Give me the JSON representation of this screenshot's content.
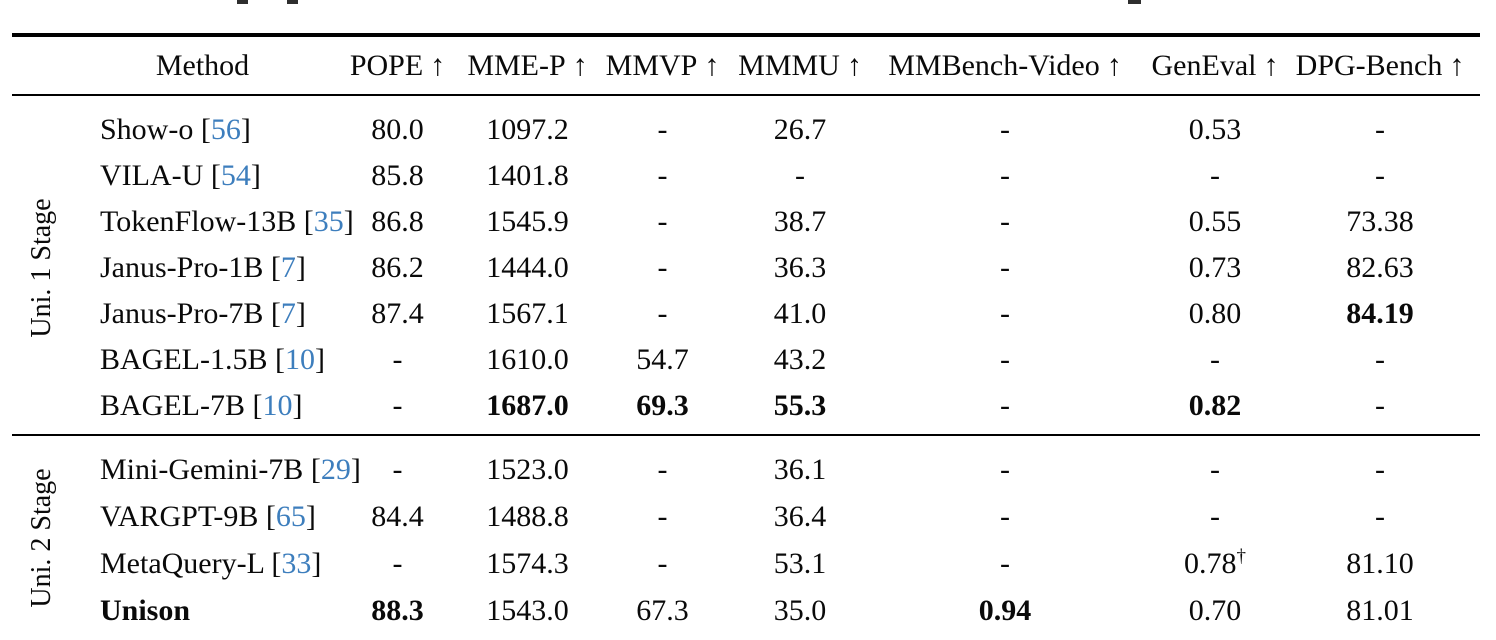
{
  "colors": {
    "text": "#0a0a0a",
    "citation": "#3d7ebd",
    "rule": "#000000"
  },
  "header": {
    "method_label": "Method",
    "arrow": "↑",
    "metrics": [
      "POPE",
      "MME-P",
      "MMVP",
      "MMMU",
      "MMBench-Video",
      "GenEval",
      "DPG-Bench"
    ]
  },
  "sections": [
    {
      "label": "Uni. 1 Stage",
      "rows": [
        {
          "method": "Show-o",
          "cite": "56",
          "method_bold": false,
          "values": [
            "80.0",
            "1097.2",
            "-",
            "26.7",
            "-",
            "0.53",
            "-"
          ]
        },
        {
          "method": "VILA-U",
          "cite": "54",
          "method_bold": false,
          "values": [
            "85.8",
            "1401.8",
            "-",
            "-",
            "-",
            "-",
            "-"
          ]
        },
        {
          "method": "TokenFlow-13B",
          "cite": "35",
          "method_bold": false,
          "values": [
            "86.8",
            "1545.9",
            "-",
            "38.7",
            "-",
            "0.55",
            "73.38"
          ]
        },
        {
          "method": "Janus-Pro-1B",
          "cite": "7",
          "method_bold": false,
          "values": [
            "86.2",
            "1444.0",
            "-",
            "36.3",
            "-",
            "0.73",
            "82.63"
          ]
        },
        {
          "method": "Janus-Pro-7B",
          "cite": "7",
          "method_bold": false,
          "values": [
            "87.4",
            "1567.1",
            "-",
            "41.0",
            "-",
            "0.80",
            {
              "t": "84.19",
              "bold": true
            }
          ]
        },
        {
          "method": "BAGEL-1.5B",
          "cite": "10",
          "method_bold": false,
          "values": [
            "-",
            "1610.0",
            "54.7",
            "43.2",
            "-",
            "-",
            "-"
          ]
        },
        {
          "method": "BAGEL-7B",
          "cite": "10",
          "method_bold": false,
          "values": [
            "-",
            {
              "t": "1687.0",
              "bold": true
            },
            {
              "t": "69.3",
              "bold": true
            },
            {
              "t": "55.3",
              "bold": true
            },
            "-",
            {
              "t": "0.82",
              "bold": true
            },
            "-"
          ]
        }
      ]
    },
    {
      "label": "Uni. 2 Stage",
      "rows": [
        {
          "method": "Mini-Gemini-7B",
          "cite": "29",
          "method_bold": false,
          "values": [
            "-",
            "1523.0",
            "-",
            "36.1",
            "-",
            "-",
            "-"
          ]
        },
        {
          "method": "VARGPT-9B",
          "cite": "65",
          "method_bold": false,
          "values": [
            "84.4",
            "1488.8",
            "-",
            "36.4",
            "-",
            "-",
            "-"
          ]
        },
        {
          "method": "MetaQuery-L",
          "cite": "33",
          "method_bold": false,
          "values": [
            "-",
            "1574.3",
            "-",
            "53.1",
            "-",
            {
              "t": "0.78",
              "sup": "†"
            },
            "81.10"
          ]
        },
        {
          "method": "Unison",
          "cite": null,
          "method_bold": true,
          "values": [
            {
              "t": "88.3",
              "bold": true
            },
            "1543.0",
            "67.3",
            "35.0",
            {
              "t": "0.94",
              "bold": true
            },
            "0.70",
            "81.01"
          ]
        }
      ]
    }
  ]
}
